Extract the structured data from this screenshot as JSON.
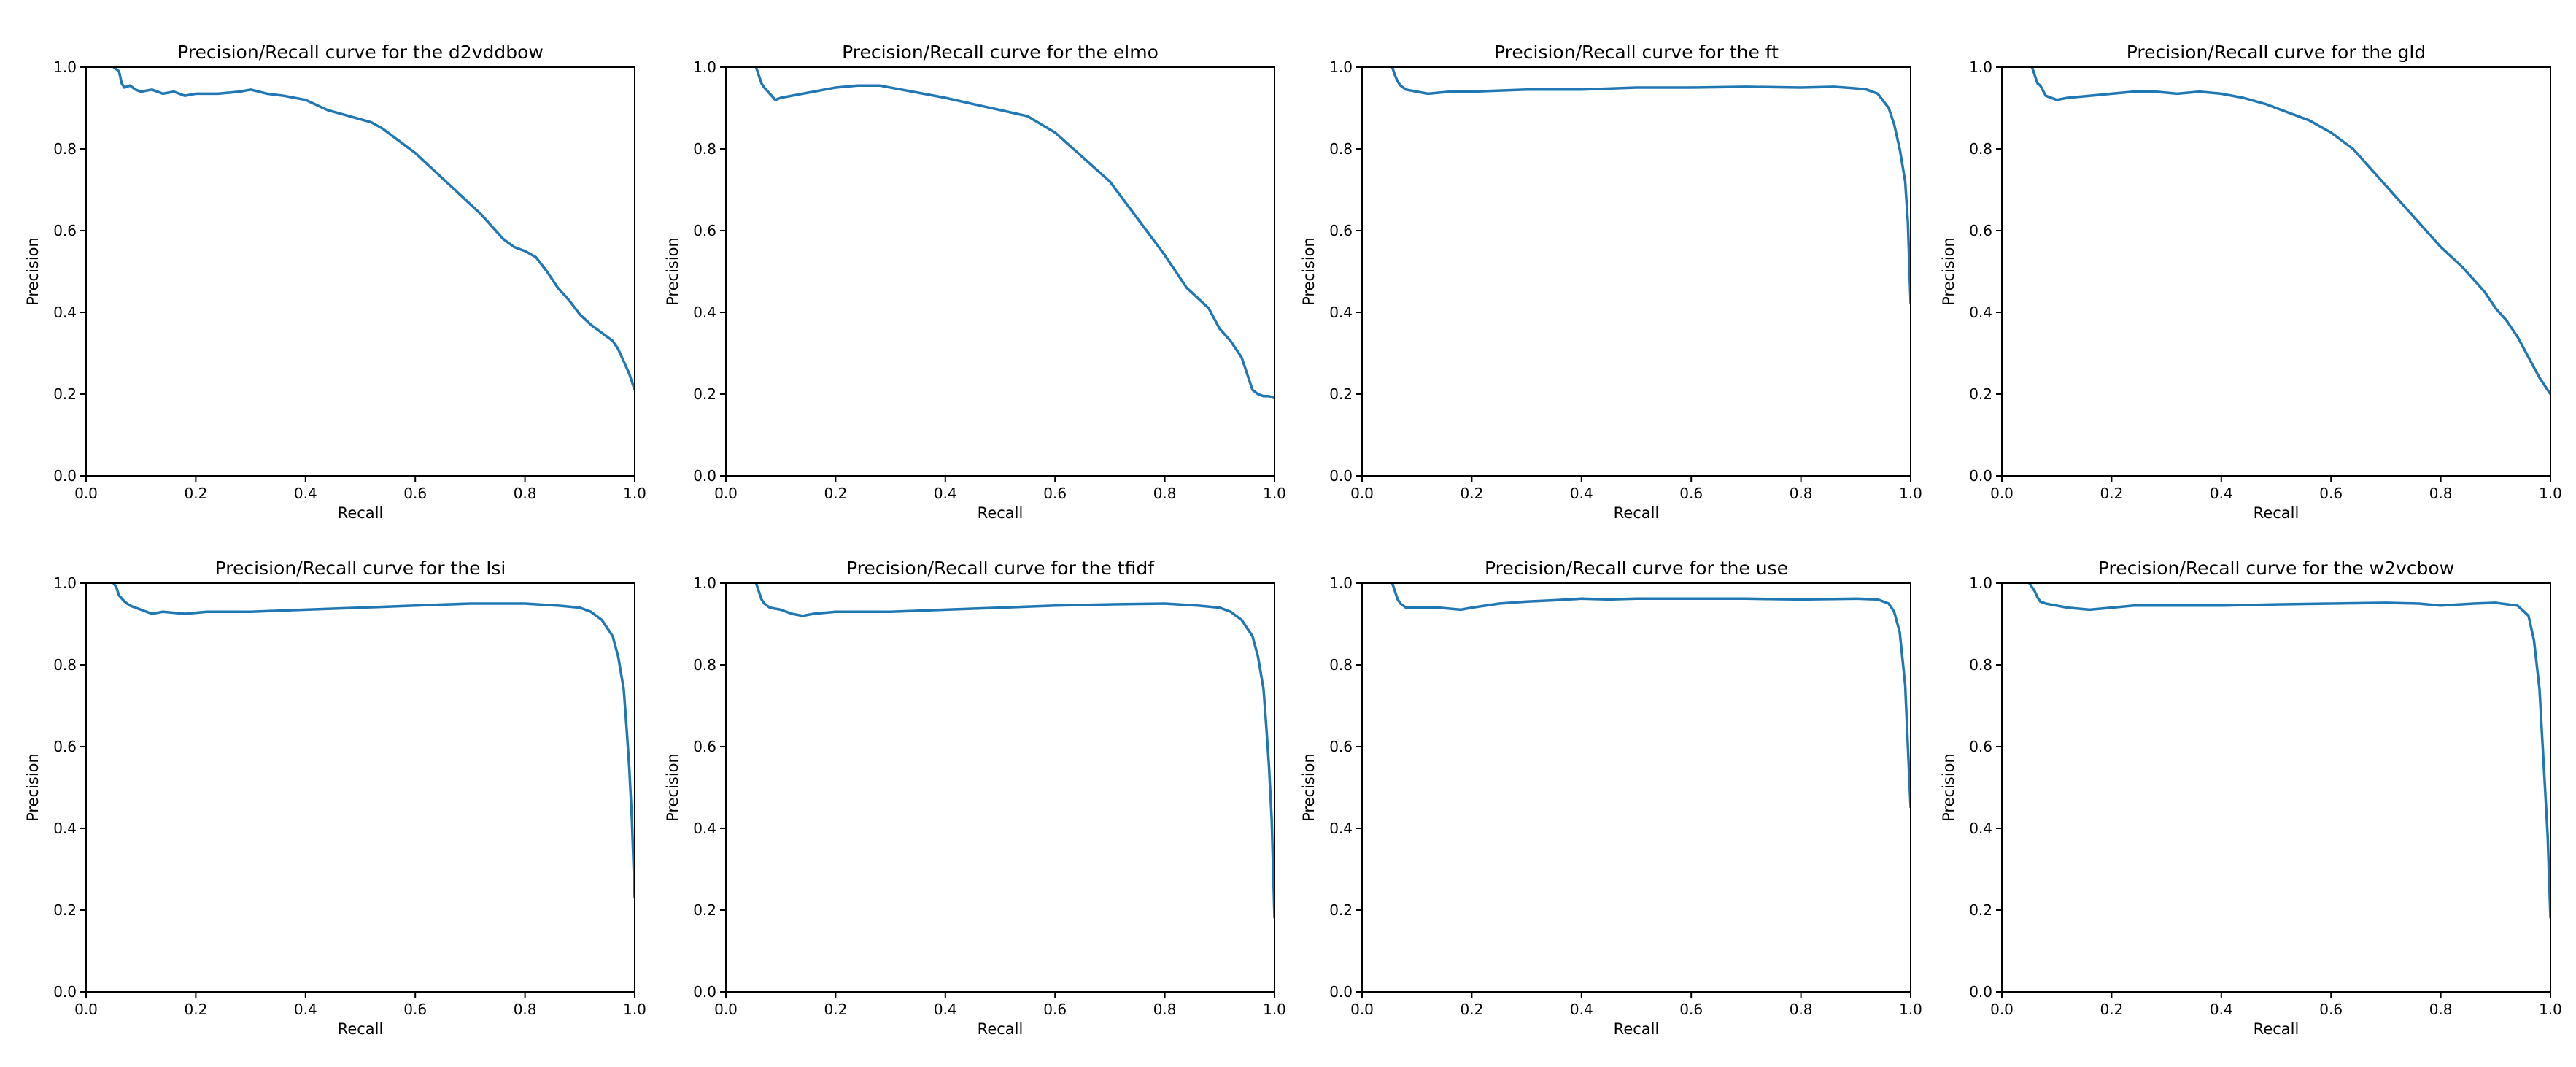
{
  "figure": {
    "background": "#ffffff",
    "line_color": "#1f77b4"
  },
  "chart_data": [
    {
      "type": "line",
      "title": "Precision/Recall curve for the d2vddbow",
      "xlabel": "Recall",
      "ylabel": "Precision",
      "xlim": [
        0,
        1
      ],
      "ylim": [
        0,
        1
      ],
      "xticks": [
        "0.0",
        "0.2",
        "0.4",
        "0.6",
        "0.8",
        "1.0"
      ],
      "yticks": [
        "0.0",
        "0.2",
        "0.4",
        "0.6",
        "0.8",
        "1.0"
      ],
      "series": [
        {
          "x": [
            0.05,
            0.06,
            0.065,
            0.07,
            0.08,
            0.09,
            0.1,
            0.12,
            0.14,
            0.16,
            0.18,
            0.2,
            0.24,
            0.28,
            0.3,
            0.33,
            0.36,
            0.4,
            0.44,
            0.48,
            0.52,
            0.54,
            0.56,
            0.6,
            0.64,
            0.68,
            0.72,
            0.76,
            0.78,
            0.8,
            0.82,
            0.84,
            0.86,
            0.88,
            0.9,
            0.92,
            0.94,
            0.96,
            0.97,
            0.98,
            0.99,
            1.0
          ],
          "y": [
            1.0,
            0.99,
            0.96,
            0.95,
            0.955,
            0.945,
            0.94,
            0.945,
            0.935,
            0.94,
            0.93,
            0.935,
            0.935,
            0.94,
            0.945,
            0.935,
            0.93,
            0.92,
            0.895,
            0.88,
            0.865,
            0.85,
            0.83,
            0.79,
            0.74,
            0.69,
            0.64,
            0.58,
            0.56,
            0.55,
            0.535,
            0.5,
            0.46,
            0.43,
            0.395,
            0.37,
            0.35,
            0.33,
            0.31,
            0.28,
            0.25,
            0.21
          ]
        }
      ]
    },
    {
      "type": "line",
      "title": "Precision/Recall curve for the elmo",
      "xlabel": "Recall",
      "ylabel": "Precision",
      "xlim": [
        0,
        1
      ],
      "ylim": [
        0,
        1
      ],
      "xticks": [
        "0.0",
        "0.2",
        "0.4",
        "0.6",
        "0.8",
        "1.0"
      ],
      "yticks": [
        "0.0",
        "0.2",
        "0.4",
        "0.6",
        "0.8",
        "1.0"
      ],
      "series": [
        {
          "x": [
            0.055,
            0.06,
            0.065,
            0.07,
            0.08,
            0.09,
            0.1,
            0.12,
            0.16,
            0.2,
            0.24,
            0.28,
            0.32,
            0.36,
            0.4,
            0.45,
            0.5,
            0.55,
            0.6,
            0.65,
            0.7,
            0.75,
            0.8,
            0.84,
            0.88,
            0.9,
            0.92,
            0.94,
            0.95,
            0.96,
            0.97,
            0.98,
            0.99,
            1.0
          ],
          "y": [
            1.0,
            0.98,
            0.96,
            0.95,
            0.935,
            0.92,
            0.925,
            0.93,
            0.94,
            0.95,
            0.955,
            0.955,
            0.945,
            0.935,
            0.925,
            0.91,
            0.895,
            0.88,
            0.84,
            0.78,
            0.72,
            0.63,
            0.54,
            0.46,
            0.41,
            0.36,
            0.33,
            0.29,
            0.25,
            0.21,
            0.2,
            0.195,
            0.195,
            0.19
          ]
        }
      ]
    },
    {
      "type": "line",
      "title": "Precision/Recall curve for the ft",
      "xlabel": "Recall",
      "ylabel": "Precision",
      "xlim": [
        0,
        1
      ],
      "ylim": [
        0,
        1
      ],
      "xticks": [
        "0.0",
        "0.2",
        "0.4",
        "0.6",
        "0.8",
        "1.0"
      ],
      "yticks": [
        "0.0",
        "0.2",
        "0.4",
        "0.6",
        "0.8",
        "1.0"
      ],
      "series": [
        {
          "x": [
            0.055,
            0.06,
            0.065,
            0.07,
            0.08,
            0.1,
            0.12,
            0.16,
            0.2,
            0.3,
            0.4,
            0.5,
            0.6,
            0.7,
            0.8,
            0.86,
            0.9,
            0.92,
            0.94,
            0.96,
            0.97,
            0.98,
            0.99,
            0.995,
            1.0
          ],
          "y": [
            1.0,
            0.98,
            0.965,
            0.955,
            0.945,
            0.94,
            0.935,
            0.94,
            0.94,
            0.945,
            0.945,
            0.95,
            0.95,
            0.952,
            0.95,
            0.952,
            0.948,
            0.945,
            0.935,
            0.9,
            0.86,
            0.8,
            0.72,
            0.62,
            0.42
          ]
        }
      ]
    },
    {
      "type": "line",
      "title": "Precision/Recall curve for the gld",
      "xlabel": "Recall",
      "ylabel": "Precision",
      "xlim": [
        0,
        1
      ],
      "ylim": [
        0,
        1
      ],
      "xticks": [
        "0.0",
        "0.2",
        "0.4",
        "0.6",
        "0.8",
        "1.0"
      ],
      "yticks": [
        "0.0",
        "0.2",
        "0.4",
        "0.6",
        "0.8",
        "1.0"
      ],
      "series": [
        {
          "x": [
            0.055,
            0.06,
            0.065,
            0.07,
            0.08,
            0.1,
            0.12,
            0.16,
            0.2,
            0.24,
            0.28,
            0.32,
            0.36,
            0.4,
            0.44,
            0.48,
            0.52,
            0.56,
            0.6,
            0.64,
            0.68,
            0.72,
            0.76,
            0.8,
            0.84,
            0.88,
            0.9,
            0.92,
            0.94,
            0.96,
            0.98,
            1.0
          ],
          "y": [
            1.0,
            0.98,
            0.96,
            0.955,
            0.93,
            0.92,
            0.925,
            0.93,
            0.935,
            0.94,
            0.94,
            0.935,
            0.94,
            0.935,
            0.925,
            0.91,
            0.89,
            0.87,
            0.84,
            0.8,
            0.74,
            0.68,
            0.62,
            0.56,
            0.51,
            0.45,
            0.41,
            0.38,
            0.34,
            0.29,
            0.24,
            0.2
          ]
        }
      ]
    },
    {
      "type": "line",
      "title": "Precision/Recall curve for the lsi",
      "xlabel": "Recall",
      "ylabel": "Precision",
      "xlim": [
        0,
        1
      ],
      "ylim": [
        0,
        1
      ],
      "xticks": [
        "0.0",
        "0.2",
        "0.4",
        "0.6",
        "0.8",
        "1.0"
      ],
      "yticks": [
        "0.0",
        "0.2",
        "0.4",
        "0.6",
        "0.8",
        "1.0"
      ],
      "series": [
        {
          "x": [
            0.05,
            0.055,
            0.06,
            0.07,
            0.08,
            0.1,
            0.12,
            0.14,
            0.18,
            0.22,
            0.3,
            0.4,
            0.5,
            0.6,
            0.7,
            0.8,
            0.86,
            0.9,
            0.92,
            0.94,
            0.96,
            0.97,
            0.98,
            0.985,
            0.99,
            0.995,
            1.0
          ],
          "y": [
            1.0,
            0.99,
            0.97,
            0.955,
            0.945,
            0.935,
            0.925,
            0.93,
            0.925,
            0.93,
            0.93,
            0.935,
            0.94,
            0.945,
            0.95,
            0.95,
            0.945,
            0.94,
            0.93,
            0.91,
            0.87,
            0.82,
            0.74,
            0.65,
            0.55,
            0.42,
            0.23
          ]
        }
      ]
    },
    {
      "type": "line",
      "title": "Precision/Recall curve for the tfidf",
      "xlabel": "Recall",
      "ylabel": "Precision",
      "xlim": [
        0,
        1
      ],
      "ylim": [
        0,
        1
      ],
      "xticks": [
        "0.0",
        "0.2",
        "0.4",
        "0.6",
        "0.8",
        "1.0"
      ],
      "yticks": [
        "0.0",
        "0.2",
        "0.4",
        "0.6",
        "0.8",
        "1.0"
      ],
      "series": [
        {
          "x": [
            0.055,
            0.06,
            0.065,
            0.07,
            0.08,
            0.1,
            0.12,
            0.14,
            0.16,
            0.2,
            0.3,
            0.4,
            0.5,
            0.6,
            0.7,
            0.8,
            0.86,
            0.9,
            0.92,
            0.94,
            0.96,
            0.97,
            0.98,
            0.985,
            0.99,
            0.995,
            1.0
          ],
          "y": [
            1.0,
            0.98,
            0.96,
            0.95,
            0.94,
            0.935,
            0.925,
            0.92,
            0.925,
            0.93,
            0.93,
            0.935,
            0.94,
            0.945,
            0.948,
            0.95,
            0.945,
            0.94,
            0.93,
            0.91,
            0.87,
            0.82,
            0.74,
            0.65,
            0.55,
            0.42,
            0.18
          ]
        }
      ]
    },
    {
      "type": "line",
      "title": "Precision/Recall curve for the use",
      "xlabel": "Recall",
      "ylabel": "Precision",
      "xlim": [
        0,
        1
      ],
      "ylim": [
        0,
        1
      ],
      "xticks": [
        "0.0",
        "0.2",
        "0.4",
        "0.6",
        "0.8",
        "1.0"
      ],
      "yticks": [
        "0.0",
        "0.2",
        "0.4",
        "0.6",
        "0.8",
        "1.0"
      ],
      "series": [
        {
          "x": [
            0.055,
            0.06,
            0.065,
            0.07,
            0.08,
            0.1,
            0.14,
            0.18,
            0.2,
            0.25,
            0.3,
            0.35,
            0.4,
            0.45,
            0.5,
            0.6,
            0.7,
            0.8,
            0.9,
            0.94,
            0.96,
            0.97,
            0.98,
            0.99,
            0.995,
            1.0
          ],
          "y": [
            1.0,
            0.98,
            0.96,
            0.95,
            0.94,
            0.94,
            0.94,
            0.935,
            0.94,
            0.95,
            0.955,
            0.958,
            0.962,
            0.96,
            0.962,
            0.962,
            0.962,
            0.96,
            0.962,
            0.96,
            0.95,
            0.93,
            0.88,
            0.75,
            0.6,
            0.45
          ]
        }
      ]
    },
    {
      "type": "line",
      "title": "Precision/Recall curve for the w2vcbow",
      "xlabel": "Recall",
      "ylabel": "Precision",
      "xlim": [
        0,
        1
      ],
      "ylim": [
        0,
        1
      ],
      "xticks": [
        "0.0",
        "0.2",
        "0.4",
        "0.6",
        "0.8",
        "1.0"
      ],
      "yticks": [
        "0.0",
        "0.2",
        "0.4",
        "0.6",
        "0.8",
        "1.0"
      ],
      "series": [
        {
          "x": [
            0.05,
            0.055,
            0.06,
            0.065,
            0.07,
            0.08,
            0.1,
            0.12,
            0.16,
            0.2,
            0.24,
            0.3,
            0.4,
            0.5,
            0.6,
            0.7,
            0.76,
            0.8,
            0.86,
            0.9,
            0.94,
            0.96,
            0.97,
            0.98,
            0.985,
            0.99,
            0.995,
            1.0
          ],
          "y": [
            1.0,
            0.99,
            0.98,
            0.965,
            0.955,
            0.95,
            0.945,
            0.94,
            0.935,
            0.94,
            0.945,
            0.945,
            0.945,
            0.948,
            0.95,
            0.952,
            0.95,
            0.945,
            0.95,
            0.952,
            0.945,
            0.92,
            0.86,
            0.74,
            0.62,
            0.5,
            0.38,
            0.18
          ]
        }
      ]
    }
  ]
}
